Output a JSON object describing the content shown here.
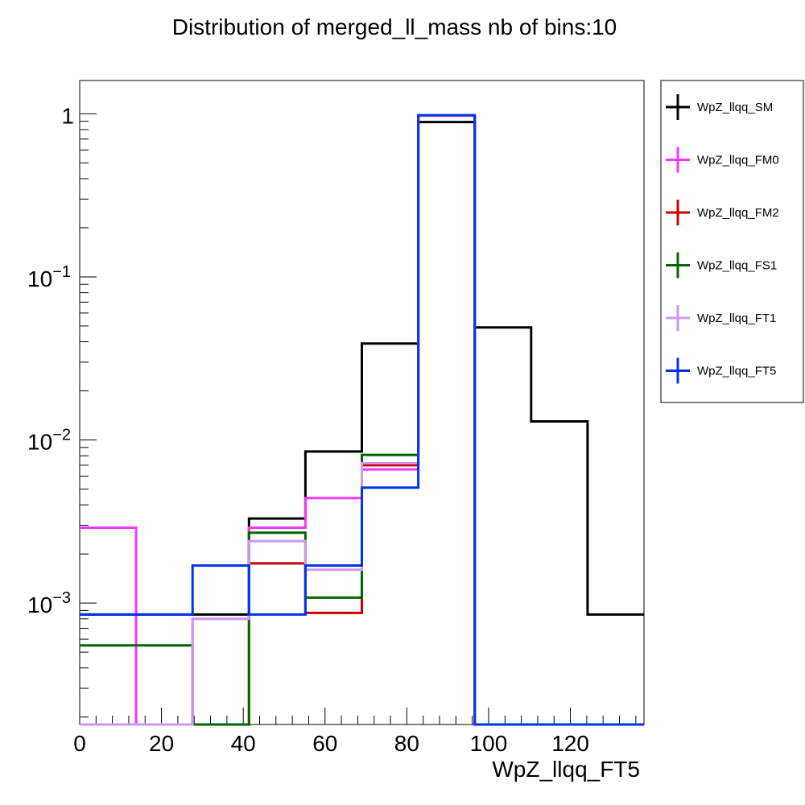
{
  "chart_data": {
    "type": "histogram",
    "title": "Distribution of merged_ll_mass nb of bins:10",
    "xlabel": "WpZ_llqq_FT5",
    "ylabel": "",
    "xscale": "linear",
    "yscale": "log",
    "xlim": [
      0,
      138
    ],
    "ylim": [
      0.00018,
      1.6
    ],
    "grid": false,
    "legend_position": "right",
    "bin_edges": [
      0,
      13.8,
      27.6,
      41.4,
      55.2,
      69,
      82.8,
      96.6,
      110.4,
      124.2,
      138
    ],
    "x_ticks": [
      0,
      20,
      40,
      60,
      80,
      100,
      120
    ],
    "y_ticks": [
      {
        "value": 0.001,
        "base": "10",
        "exp": "−3"
      },
      {
        "value": 0.01,
        "base": "10",
        "exp": "−2"
      },
      {
        "value": 0.1,
        "base": "10",
        "exp": "−1"
      },
      {
        "value": 1,
        "base": "1",
        "exp": ""
      }
    ],
    "series": [
      {
        "name": "WpZ_llqq_SM",
        "color": "#000000",
        "values": [
          0.00085,
          0.00085,
          0.00085,
          0.0033,
          0.0085,
          0.039,
          0.89,
          0.049,
          0.013,
          0.00085
        ]
      },
      {
        "name": "WpZ_llqq_FM0",
        "color": "#ff33ff",
        "values": [
          0.0029,
          0,
          0.0008,
          0.0029,
          0.0044,
          0.0066,
          0.97,
          0,
          0,
          0
        ]
      },
      {
        "name": "WpZ_llqq_FM2",
        "color": "#cc0000",
        "values": [
          0,
          0,
          0,
          0.00175,
          0.00087,
          0.007,
          0.97,
          0,
          0,
          0
        ]
      },
      {
        "name": "WpZ_llqq_FS1",
        "color": "#006600",
        "values": [
          0.00055,
          0.00055,
          0,
          0.0027,
          0.00108,
          0.0081,
          0.97,
          0,
          0,
          0
        ]
      },
      {
        "name": "WpZ_llqq_FT1",
        "color": "#cc99ee",
        "values": [
          0,
          0,
          0.0008,
          0.0024,
          0.0016,
          0.0072,
          0.97,
          0,
          0,
          0
        ]
      },
      {
        "name": "WpZ_llqq_FT5",
        "color": "#0033ee",
        "values": [
          0.00085,
          0.00085,
          0.0017,
          0.00085,
          0.0017,
          0.0051,
          0.98,
          0,
          0,
          0
        ]
      }
    ]
  }
}
